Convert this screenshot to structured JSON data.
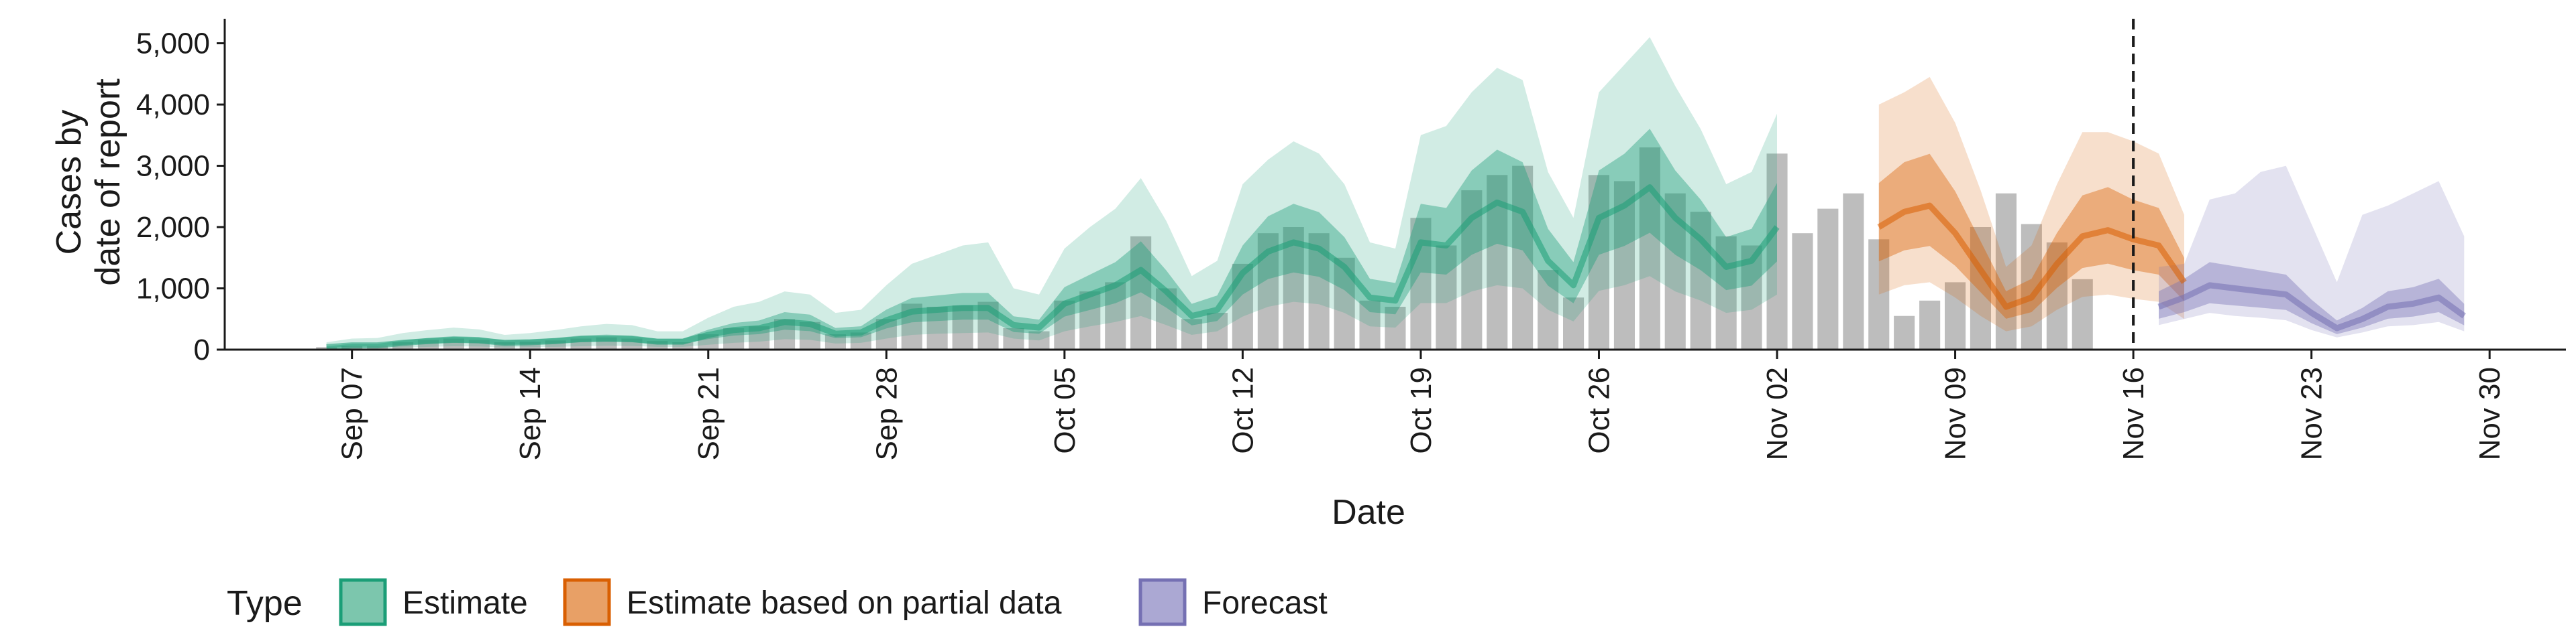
{
  "chart_data": {
    "type": "bar",
    "xlabel": "Date",
    "ylabel_lines": [
      "Cases by",
      "date of report"
    ],
    "ylim": [
      0,
      5400
    ],
    "y_ticks": [
      0,
      1000,
      2000,
      3000,
      4000,
      5000
    ],
    "y_tick_labels": [
      "0",
      "1,000",
      "2,000",
      "3,000",
      "4,000",
      "5,000"
    ],
    "x_ticks": [
      "2020-09-07",
      "2020-09-14",
      "2020-09-21",
      "2020-09-28",
      "2020-10-05",
      "2020-10-12",
      "2020-10-19",
      "2020-10-26",
      "2020-11-02",
      "2020-11-09",
      "2020-11-16",
      "2020-11-23",
      "2020-11-30"
    ],
    "x_tick_labels": [
      "Sep 07",
      "Sep 14",
      "Sep 21",
      "Sep 28",
      "Oct 05",
      "Oct 12",
      "Oct 19",
      "Oct 26",
      "Nov 02",
      "Nov 09",
      "Nov 16",
      "Nov 23",
      "Nov 30"
    ],
    "x_range": [
      "2020-09-02",
      "2020-12-03"
    ],
    "vline_date": "2020-11-16",
    "grid": false,
    "legend_position": "bottom",
    "legend_title": "Type",
    "legend": [
      {
        "key": "estimate",
        "label": "Estimate"
      },
      {
        "key": "partial",
        "label": "Estimate based on partial data"
      },
      {
        "key": "forecast",
        "label": "Forecast"
      }
    ],
    "colors": {
      "bar": "#bdbdbd",
      "estimate": "#1b9e77",
      "partial": "#d95f02",
      "forecast": "#7570b3",
      "legend_fill_estimate": "#7cc6ad",
      "legend_fill_partial": "#e8a066",
      "legend_fill_forecast": "#aba8d3"
    },
    "observed": {
      "start": "2020-09-06",
      "values": [
        40,
        60,
        60,
        120,
        160,
        180,
        160,
        120,
        130,
        150,
        180,
        200,
        180,
        140,
        120,
        250,
        350,
        380,
        500,
        450,
        250,
        280,
        500,
        750,
        700,
        720,
        780,
        350,
        300,
        800,
        950,
        1100,
        1850,
        1000,
        500,
        600,
        1400,
        1900,
        2000,
        1900,
        1500,
        800,
        700,
        2150,
        1700,
        2600,
        2850,
        3000,
        1300,
        850,
        2850,
        2750,
        3300,
        2550,
        2250,
        1850,
        1700,
        3200,
        1900,
        2300,
        2550,
        1800,
        550,
        800,
        1100,
        2000,
        2550,
        2050,
        1750,
        1150
      ]
    },
    "estimate": {
      "start": "2020-09-06",
      "median": [
        40,
        70,
        70,
        110,
        140,
        160,
        150,
        110,
        120,
        140,
        170,
        180,
        170,
        130,
        130,
        240,
        320,
        350,
        450,
        420,
        260,
        280,
        480,
        620,
        650,
        680,
        680,
        400,
        360,
        750,
        900,
        1050,
        1300,
        950,
        550,
        650,
        1250,
        1600,
        1750,
        1650,
        1350,
        850,
        800,
        1750,
        1700,
        2150,
        2400,
        2250,
        1450,
        1050,
        2150,
        2350,
        2650,
        2150,
        1800,
        1350,
        1450,
        2000
      ],
      "outer_lo": [
        10,
        20,
        25,
        35,
        45,
        55,
        50,
        35,
        40,
        45,
        55,
        65,
        60,
        45,
        45,
        80,
        110,
        130,
        170,
        160,
        100,
        110,
        180,
        240,
        260,
        270,
        280,
        180,
        150,
        300,
        380,
        450,
        550,
        400,
        240,
        300,
        540,
        700,
        780,
        740,
        600,
        380,
        360,
        760,
        760,
        950,
        1050,
        1000,
        650,
        460,
        960,
        1050,
        1200,
        950,
        800,
        600,
        650,
        900
      ],
      "outer_hi": [
        120,
        180,
        190,
        270,
        320,
        360,
        330,
        240,
        270,
        320,
        380,
        420,
        400,
        300,
        300,
        520,
        700,
        780,
        950,
        900,
        600,
        650,
        1050,
        1400,
        1550,
        1700,
        1750,
        1000,
        900,
        1650,
        2000,
        2300,
        2800,
        2100,
        1200,
        1450,
        2700,
        3100,
        3400,
        3200,
        2700,
        1750,
        1650,
        3500,
        3650,
        4200,
        4600,
        4400,
        2900,
        2150,
        4200,
        4650,
        5100,
        4300,
        3600,
        2700,
        2900,
        3850
      ],
      "inner_lo": [
        30,
        50,
        50,
        80,
        100,
        115,
        108,
        80,
        86,
        100,
        122,
        130,
        122,
        94,
        94,
        172,
        230,
        252,
        325,
        302,
        187,
        202,
        345,
        446,
        468,
        490,
        490,
        288,
        259,
        540,
        648,
        756,
        936,
        684,
        396,
        468,
        900,
        1152,
        1260,
        1188,
        972,
        612,
        576,
        1260,
        1224,
        1548,
        1728,
        1620,
        1044,
        756,
        1548,
        1692,
        1908,
        1548,
        1296,
        972,
        1044,
        1440
      ],
      "inner_hi": [
        55,
        95,
        95,
        150,
        190,
        220,
        205,
        150,
        163,
        190,
        231,
        245,
        231,
        177,
        177,
        326,
        435,
        476,
        612,
        571,
        354,
        381,
        653,
        843,
        884,
        925,
        925,
        544,
        490,
        1020,
        1224,
        1428,
        1768,
        1292,
        748,
        884,
        1700,
        2176,
        2380,
        2244,
        1836,
        1156,
        1088,
        2380,
        2312,
        2924,
        3264,
        3060,
        1972,
        1428,
        2924,
        3196,
        3604,
        2924,
        2448,
        1836,
        1972,
        2720
      ]
    },
    "partial": {
      "start": "2020-11-06",
      "median": [
        2000,
        2250,
        2350,
        1900,
        1300,
        700,
        850,
        1400,
        1850,
        1950,
        1800,
        1700,
        1100
      ],
      "outer_lo": [
        900,
        1050,
        1100,
        850,
        550,
        300,
        380,
        650,
        860,
        900,
        830,
        780,
        500
      ],
      "outer_hi": [
        4000,
        4200,
        4450,
        3700,
        2600,
        1350,
        1700,
        2700,
        3550,
        3550,
        3400,
        3200,
        2200
      ],
      "inner_lo": [
        1440,
        1620,
        1692,
        1368,
        936,
        504,
        612,
        1008,
        1332,
        1404,
        1296,
        1224,
        792
      ],
      "inner_hi": [
        2720,
        3060,
        3196,
        2584,
        1768,
        952,
        1156,
        1904,
        2516,
        2652,
        2448,
        2312,
        1496
      ]
    },
    "forecast": {
      "start": "2020-11-17",
      "median": [
        700,
        850,
        1050,
        1000,
        950,
        900,
        600,
        350,
        500,
        700,
        750,
        850,
        550
      ],
      "outer_lo": [
        400,
        500,
        600,
        550,
        520,
        480,
        320,
        200,
        280,
        380,
        400,
        450,
        300
      ],
      "outer_hi": [
        1350,
        1400,
        2450,
        2550,
        2900,
        3000,
        2050,
        1100,
        2200,
        2350,
        2550,
        2750,
        1850
      ],
      "inner_lo": [
        504,
        612,
        756,
        720,
        684,
        648,
        432,
        252,
        360,
        504,
        540,
        612,
        396
      ],
      "inner_hi": [
        952,
        1156,
        1428,
        1360,
        1292,
        1224,
        816,
        476,
        680,
        952,
        1020,
        1156,
        748
      ]
    }
  }
}
